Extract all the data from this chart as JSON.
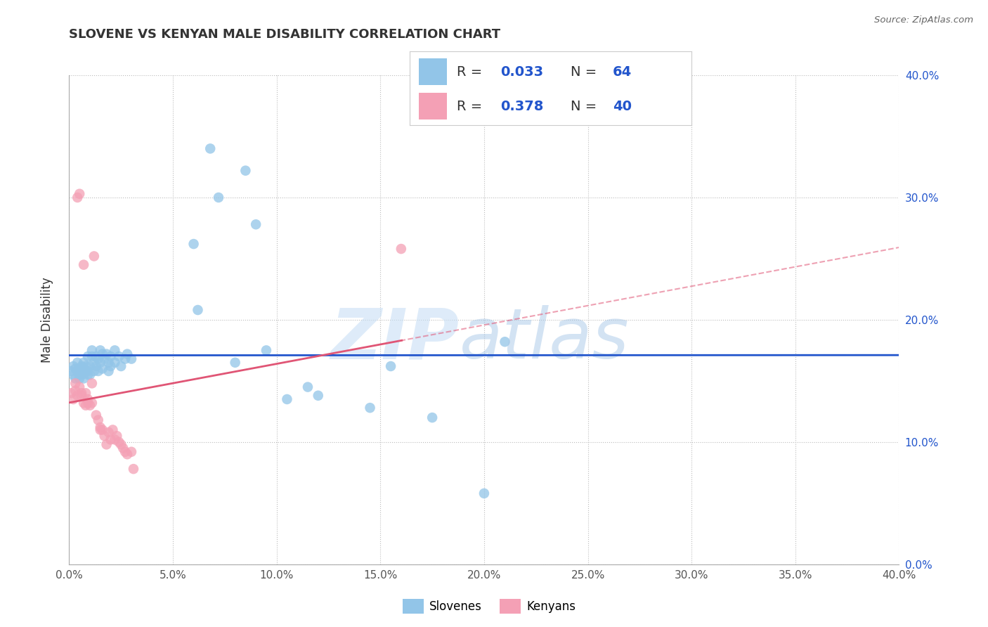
{
  "title": "SLOVENE VS KENYAN MALE DISABILITY CORRELATION CHART",
  "source": "Source: ZipAtlas.com",
  "ylabel": "Male Disability",
  "xlim": [
    0.0,
    0.4
  ],
  "ylim": [
    0.0,
    0.4
  ],
  "x_ticks": [
    0.0,
    0.05,
    0.1,
    0.15,
    0.2,
    0.25,
    0.3,
    0.35,
    0.4
  ],
  "y_ticks": [
    0.0,
    0.1,
    0.2,
    0.3,
    0.4
  ],
  "slovene_color": "#92C5E8",
  "kenyan_color": "#F4A0B5",
  "slovene_line_color": "#2255CC",
  "kenyan_line_color": "#E05575",
  "legend_text_color": "#2255CC",
  "R_slovene": 0.033,
  "N_slovene": 64,
  "R_kenyan": 0.378,
  "N_kenyan": 40,
  "slovene_points": [
    [
      0.001,
      0.158
    ],
    [
      0.002,
      0.162
    ],
    [
      0.002,
      0.155
    ],
    [
      0.003,
      0.16
    ],
    [
      0.003,
      0.152
    ],
    [
      0.004,
      0.158
    ],
    [
      0.004,
      0.165
    ],
    [
      0.005,
      0.155
    ],
    [
      0.005,
      0.16
    ],
    [
      0.005,
      0.152
    ],
    [
      0.006,
      0.158
    ],
    [
      0.006,
      0.162
    ],
    [
      0.006,
      0.155
    ],
    [
      0.007,
      0.16
    ],
    [
      0.007,
      0.165
    ],
    [
      0.007,
      0.152
    ],
    [
      0.008,
      0.158
    ],
    [
      0.008,
      0.162
    ],
    [
      0.009,
      0.155
    ],
    [
      0.009,
      0.17
    ],
    [
      0.009,
      0.158
    ],
    [
      0.01,
      0.162
    ],
    [
      0.01,
      0.155
    ],
    [
      0.011,
      0.17
    ],
    [
      0.011,
      0.175
    ],
    [
      0.012,
      0.165
    ],
    [
      0.012,
      0.158
    ],
    [
      0.013,
      0.17
    ],
    [
      0.013,
      0.162
    ],
    [
      0.014,
      0.168
    ],
    [
      0.014,
      0.158
    ],
    [
      0.015,
      0.175
    ],
    [
      0.015,
      0.165
    ],
    [
      0.016,
      0.172
    ],
    [
      0.016,
      0.16
    ],
    [
      0.017,
      0.168
    ],
    [
      0.018,
      0.172
    ],
    [
      0.019,
      0.165
    ],
    [
      0.019,
      0.158
    ],
    [
      0.02,
      0.17
    ],
    [
      0.02,
      0.162
    ],
    [
      0.022,
      0.175
    ],
    [
      0.022,
      0.165
    ],
    [
      0.024,
      0.17
    ],
    [
      0.025,
      0.162
    ],
    [
      0.027,
      0.168
    ],
    [
      0.028,
      0.172
    ],
    [
      0.03,
      0.168
    ],
    [
      0.06,
      0.262
    ],
    [
      0.062,
      0.208
    ],
    [
      0.068,
      0.34
    ],
    [
      0.072,
      0.3
    ],
    [
      0.08,
      0.165
    ],
    [
      0.085,
      0.322
    ],
    [
      0.09,
      0.278
    ],
    [
      0.095,
      0.175
    ],
    [
      0.105,
      0.135
    ],
    [
      0.115,
      0.145
    ],
    [
      0.12,
      0.138
    ],
    [
      0.145,
      0.128
    ],
    [
      0.155,
      0.162
    ],
    [
      0.175,
      0.12
    ],
    [
      0.21,
      0.182
    ],
    [
      0.2,
      0.058
    ]
  ],
  "kenyan_points": [
    [
      0.001,
      0.14
    ],
    [
      0.002,
      0.135
    ],
    [
      0.003,
      0.148
    ],
    [
      0.003,
      0.142
    ],
    [
      0.004,
      0.138
    ],
    [
      0.004,
      0.3
    ],
    [
      0.005,
      0.303
    ],
    [
      0.005,
      0.145
    ],
    [
      0.006,
      0.14
    ],
    [
      0.006,
      0.138
    ],
    [
      0.007,
      0.132
    ],
    [
      0.007,
      0.245
    ],
    [
      0.008,
      0.14
    ],
    [
      0.008,
      0.13
    ],
    [
      0.009,
      0.135
    ],
    [
      0.009,
      0.132
    ],
    [
      0.01,
      0.13
    ],
    [
      0.011,
      0.148
    ],
    [
      0.011,
      0.132
    ],
    [
      0.012,
      0.252
    ],
    [
      0.013,
      0.122
    ],
    [
      0.014,
      0.118
    ],
    [
      0.015,
      0.112
    ],
    [
      0.015,
      0.11
    ],
    [
      0.016,
      0.11
    ],
    [
      0.017,
      0.105
    ],
    [
      0.018,
      0.098
    ],
    [
      0.019,
      0.108
    ],
    [
      0.02,
      0.102
    ],
    [
      0.021,
      0.11
    ],
    [
      0.022,
      0.102
    ],
    [
      0.023,
      0.105
    ],
    [
      0.024,
      0.1
    ],
    [
      0.025,
      0.098
    ],
    [
      0.026,
      0.095
    ],
    [
      0.027,
      0.092
    ],
    [
      0.028,
      0.09
    ],
    [
      0.03,
      0.092
    ],
    [
      0.031,
      0.078
    ],
    [
      0.16,
      0.258
    ]
  ]
}
